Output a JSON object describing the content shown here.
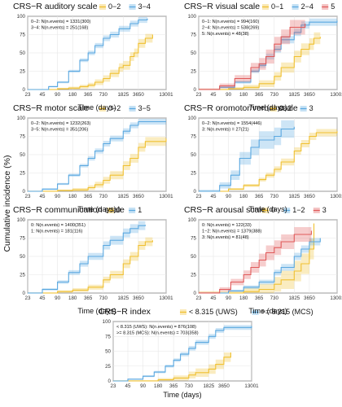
{
  "figure": {
    "ylabel": "Cumulative incidence (%)",
    "xlabel": "Time (days)"
  },
  "chart_data": [
    {
      "type": "line",
      "title": "CRS−R auditory scale",
      "xlabel": "",
      "ylabel": "",
      "x_ticks": [
        23,
        45,
        90,
        180,
        365,
        730,
        1825,
        3650,
        13001
      ],
      "y_ticks": [
        0,
        25,
        50,
        75,
        100
      ],
      "x_scale": "log",
      "xlim": [
        23,
        13001
      ],
      "ylim": [
        0,
        100
      ],
      "grid": true,
      "legend": "top",
      "annotations": [
        "0−2: N(n.events) = 1331(300)",
        "3−4: N(n.events) = 251(168)"
      ],
      "series": [
        {
          "name": "0−2",
          "color": "#f0c030",
          "end_day": 7000,
          "points": [
            [
              23,
              0
            ],
            [
              90,
              1
            ],
            [
              150,
              2
            ],
            [
              250,
              4
            ],
            [
              365,
              6
            ],
            [
              500,
              10
            ],
            [
              730,
              15
            ],
            [
              1000,
              22
            ],
            [
              1500,
              30
            ],
            [
              1825,
              33
            ],
            [
              2500,
              45
            ],
            [
              3000,
              50
            ],
            [
              3650,
              63
            ],
            [
              5000,
              70
            ],
            [
              7000,
              75
            ]
          ],
          "band": 6
        },
        {
          "name": "3−4",
          "color": "#5aa8e0",
          "end_day": 5500,
          "points": [
            [
              23,
              0
            ],
            [
              60,
              4
            ],
            [
              90,
              10
            ],
            [
              150,
              25
            ],
            [
              250,
              40
            ],
            [
              365,
              50
            ],
            [
              500,
              60
            ],
            [
              730,
              70
            ],
            [
              1000,
              75
            ],
            [
              1500,
              83
            ],
            [
              2500,
              90
            ],
            [
              3650,
              95
            ],
            [
              5500,
              97
            ]
          ],
          "band": 4
        }
      ]
    },
    {
      "type": "line",
      "title": "CRS−R visual scale",
      "xlabel": "",
      "ylabel": "",
      "x_ticks": [
        23,
        45,
        90,
        180,
        365,
        730,
        1825,
        3650,
        13001
      ],
      "y_ticks": [
        0,
        25,
        50,
        75,
        100
      ],
      "x_scale": "log",
      "xlim": [
        23,
        13001
      ],
      "ylim": [
        0,
        100
      ],
      "grid": true,
      "legend": "top",
      "annotations": [
        "0−1: N(n.events) = 994(160)",
        "2−4: N(n.events) = 538(269)",
        "5: N(n.events) = 48(38)"
      ],
      "series": [
        {
          "name": "0−1",
          "color": "#f0c030",
          "end_day": 6000,
          "points": [
            [
              23,
              0
            ],
            [
              90,
              1
            ],
            [
              180,
              3
            ],
            [
              365,
              8
            ],
            [
              730,
              18
            ],
            [
              1000,
              30
            ],
            [
              1825,
              45
            ],
            [
              2500,
              55
            ],
            [
              3650,
              62
            ],
            [
              4500,
              70
            ],
            [
              6000,
              72
            ]
          ],
          "band": 8
        },
        {
          "name": "2−4",
          "color": "#5aa8e0",
          "end_day": 13001,
          "points": [
            [
              23,
              0
            ],
            [
              60,
              3
            ],
            [
              120,
              10
            ],
            [
              250,
              25
            ],
            [
              365,
              33
            ],
            [
              500,
              45
            ],
            [
              730,
              55
            ],
            [
              1000,
              68
            ],
            [
              1825,
              78
            ],
            [
              2500,
              88
            ],
            [
              3650,
              92
            ],
            [
              13001,
              94
            ]
          ],
          "band": 5
        },
        {
          "name": "5",
          "color": "#e05a5a",
          "end_day": 3000,
          "points": [
            [
              23,
              0
            ],
            [
              60,
              5
            ],
            [
              120,
              15
            ],
            [
              250,
              30
            ],
            [
              365,
              35
            ],
            [
              500,
              45
            ],
            [
              730,
              62
            ],
            [
              1000,
              72
            ],
            [
              1500,
              85
            ],
            [
              3000,
              90
            ]
          ],
          "band": 10
        }
      ]
    },
    {
      "type": "line",
      "title": "CRS−R motor scale",
      "xlabel": "",
      "ylabel": "",
      "x_ticks": [
        23,
        45,
        90,
        180,
        365,
        730,
        1825,
        3650,
        13001
      ],
      "y_ticks": [
        0,
        25,
        50,
        75,
        100
      ],
      "x_scale": "log",
      "xlim": [
        23,
        13001
      ],
      "ylim": [
        0,
        100
      ],
      "grid": true,
      "legend": "top",
      "annotations": [
        "0−2: N(n.events) = 1232(263)",
        "3−5: N(n.events) = 351(206)"
      ],
      "series": [
        {
          "name": "0−2",
          "color": "#f0c030",
          "end_day": 13001,
          "points": [
            [
              23,
              0
            ],
            [
              90,
              1
            ],
            [
              180,
              2
            ],
            [
              365,
              5
            ],
            [
              500,
              9
            ],
            [
              730,
              15
            ],
            [
              1000,
              22
            ],
            [
              1825,
              35
            ],
            [
              2500,
              45
            ],
            [
              3650,
              60
            ],
            [
              5000,
              68
            ],
            [
              13001,
              72
            ]
          ],
          "band": 6
        },
        {
          "name": "3−5",
          "color": "#5aa8e0",
          "end_day": 13001,
          "points": [
            [
              23,
              0
            ],
            [
              45,
              3
            ],
            [
              90,
              10
            ],
            [
              150,
              22
            ],
            [
              250,
              35
            ],
            [
              365,
              45
            ],
            [
              500,
              55
            ],
            [
              730,
              65
            ],
            [
              1000,
              72
            ],
            [
              1825,
              82
            ],
            [
              2500,
              90
            ],
            [
              3650,
              95
            ],
            [
              13001,
              95
            ]
          ],
          "band": 4
        }
      ]
    },
    {
      "type": "line",
      "title": "CRS−R oromotor/verbal scale",
      "xlabel": "",
      "ylabel": "",
      "x_ticks": [
        23,
        45,
        90,
        180,
        365,
        730,
        1825,
        3650,
        13001
      ],
      "y_ticks": [
        0,
        25,
        50,
        75,
        100
      ],
      "x_scale": "log",
      "xlim": [
        23,
        13001
      ],
      "ylim": [
        0,
        100
      ],
      "grid": true,
      "legend": "top",
      "annotations": [
        "0−2: N(n.events) = 1554(446)",
        "3: N(n.events) = 27(21)"
      ],
      "series": [
        {
          "name": "0−2",
          "color": "#f0c030",
          "end_day": 13001,
          "points": [
            [
              23,
              0
            ],
            [
              90,
              3
            ],
            [
              180,
              8
            ],
            [
              365,
              16
            ],
            [
              500,
              22
            ],
            [
              730,
              30
            ],
            [
              1000,
              40
            ],
            [
              1825,
              55
            ],
            [
              2500,
              65
            ],
            [
              3650,
              75
            ],
            [
              5000,
              80
            ],
            [
              13001,
              82
            ]
          ],
          "band": 5
        },
        {
          "name": "3",
          "color": "#5aa8e0",
          "end_day": 1825,
          "points": [
            [
              23,
              0
            ],
            [
              60,
              8
            ],
            [
              100,
              22
            ],
            [
              150,
              45
            ],
            [
              250,
              60
            ],
            [
              365,
              70
            ],
            [
              730,
              75
            ],
            [
              1000,
              85
            ],
            [
              1825,
              88
            ]
          ],
          "band": 12
        }
      ]
    },
    {
      "type": "line",
      "title": "CRS−R communication scale",
      "xlabel": "",
      "ylabel": "",
      "x_ticks": [
        23,
        45,
        90,
        180,
        365,
        730,
        1825,
        3650,
        13001
      ],
      "y_ticks": [
        0,
        25,
        50,
        75,
        100
      ],
      "x_scale": "log",
      "xlim": [
        23,
        13001
      ],
      "ylim": [
        0,
        100
      ],
      "grid": true,
      "legend": "top",
      "annotations": [
        "0: N(n.events) = 1400(351)",
        "1: N(n.events) = 181(116)"
      ],
      "series": [
        {
          "name": "0",
          "color": "#f0c030",
          "end_day": 7000,
          "points": [
            [
              23,
              0
            ],
            [
              90,
              2
            ],
            [
              180,
              4
            ],
            [
              365,
              8
            ],
            [
              730,
              18
            ],
            [
              1000,
              25
            ],
            [
              1825,
              40
            ],
            [
              2500,
              50
            ],
            [
              3650,
              65
            ],
            [
              5000,
              70
            ],
            [
              7000,
              72
            ]
          ],
          "band": 6
        },
        {
          "name": "1",
          "color": "#5aa8e0",
          "end_day": 5000,
          "points": [
            [
              23,
              0
            ],
            [
              45,
              5
            ],
            [
              90,
              15
            ],
            [
              150,
              28
            ],
            [
              250,
              40
            ],
            [
              365,
              50
            ],
            [
              730,
              65
            ],
            [
              1000,
              72
            ],
            [
              1825,
              82
            ],
            [
              2500,
              88
            ],
            [
              3650,
              92
            ],
            [
              5000,
              93
            ]
          ],
          "band": 6
        }
      ]
    },
    {
      "type": "line",
      "title": "CRS−R arousal scale",
      "xlabel": "",
      "ylabel": "",
      "x_ticks": [
        23,
        45,
        90,
        180,
        365,
        730,
        1825,
        3650,
        13001
      ],
      "y_ticks": [
        0,
        25,
        50,
        75,
        100
      ],
      "x_scale": "log",
      "xlim": [
        23,
        13001
      ],
      "ylim": [
        0,
        100
      ],
      "grid": true,
      "legend": "top",
      "annotations": [
        "0: N(n.events) = 122(33)",
        "1−2: N(n.events) = 1379(388)",
        "3: N(n.events) = 81(48)"
      ],
      "series": [
        {
          "name": "0",
          "color": "#f0c030",
          "end_day": 4500,
          "points": [
            [
              23,
              0
            ],
            [
              180,
              2
            ],
            [
              365,
              5
            ],
            [
              730,
              12
            ],
            [
              1000,
              18
            ],
            [
              1825,
              30
            ],
            [
              2500,
              40
            ],
            [
              3650,
              60
            ],
            [
              4500,
              95
            ]
          ],
          "band": 14
        },
        {
          "name": "1−2",
          "color": "#5aa8e0",
          "end_day": 6000,
          "points": [
            [
              23,
              0
            ],
            [
              90,
              3
            ],
            [
              180,
              8
            ],
            [
              365,
              15
            ],
            [
              730,
              28
            ],
            [
              1000,
              35
            ],
            [
              1825,
              50
            ],
            [
              2500,
              60
            ],
            [
              3650,
              70
            ],
            [
              6000,
              75
            ]
          ],
          "band": 5
        },
        {
          "name": "3",
          "color": "#e05a5a",
          "end_day": 4000,
          "points": [
            [
              23,
              0
            ],
            [
              60,
              5
            ],
            [
              100,
              15
            ],
            [
              180,
              25
            ],
            [
              250,
              35
            ],
            [
              365,
              45
            ],
            [
              500,
              55
            ],
            [
              730,
              62
            ],
            [
              1000,
              70
            ],
            [
              1825,
              80
            ],
            [
              4000,
              85
            ]
          ],
          "band": 10
        }
      ]
    },
    {
      "type": "line",
      "title": "CRS−R index",
      "xlabel": "Time (days)",
      "ylabel": "",
      "x_ticks": [
        23,
        45,
        90,
        180,
        365,
        730,
        1825,
        3650,
        13001
      ],
      "y_ticks": [
        0,
        25,
        50,
        75,
        100
      ],
      "x_scale": "log",
      "xlim": [
        23,
        13001
      ],
      "ylim": [
        0,
        100
      ],
      "grid": true,
      "legend": "top",
      "annotations": [
        "< 8.315 (UWS): N(n.events) = 876(108)",
        ">= 8.315 (MCS): N(n.events) = 703(358)"
      ],
      "series": [
        {
          "name": "< 8.315 (UWS)",
          "color": "#f0c030",
          "end_day": 5000,
          "points": [
            [
              23,
              0
            ],
            [
              180,
              2
            ],
            [
              365,
              5
            ],
            [
              730,
              10
            ],
            [
              1000,
              14
            ],
            [
              1825,
              20
            ],
            [
              2500,
              28
            ],
            [
              3650,
              40
            ],
            [
              5000,
              48
            ]
          ],
          "band": 8
        },
        {
          "name": ">= 8.315 (MCS)",
          "color": "#5aa8e0",
          "end_day": 13001,
          "points": [
            [
              23,
              0
            ],
            [
              45,
              3
            ],
            [
              90,
              8
            ],
            [
              150,
              15
            ],
            [
              250,
              25
            ],
            [
              365,
              35
            ],
            [
              500,
              45
            ],
            [
              730,
              55
            ],
            [
              1000,
              65
            ],
            [
              1825,
              75
            ],
            [
              2500,
              85
            ],
            [
              3650,
              90
            ],
            [
              13001,
              92
            ]
          ],
          "band": 4
        }
      ]
    }
  ]
}
